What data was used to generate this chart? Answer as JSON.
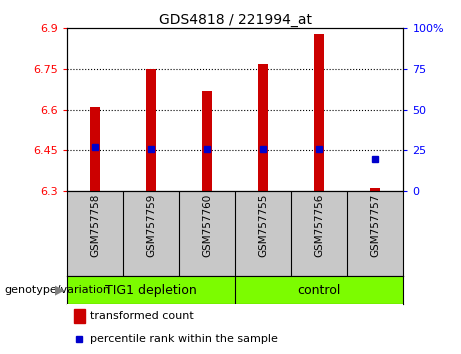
{
  "title": "GDS4818 / 221994_at",
  "samples": [
    "GSM757758",
    "GSM757759",
    "GSM757760",
    "GSM757755",
    "GSM757756",
    "GSM757757"
  ],
  "group_labels": [
    "TIG1 depletion",
    "control"
  ],
  "transformed_counts": [
    6.61,
    6.75,
    6.67,
    6.77,
    6.88,
    6.31
  ],
  "percentile_ranks": [
    27,
    26,
    26,
    26,
    26,
    20
  ],
  "ylim_left": [
    6.3,
    6.9
  ],
  "ylim_right": [
    0,
    100
  ],
  "yticks_left": [
    6.3,
    6.45,
    6.6,
    6.75,
    6.9
  ],
  "yticks_right": [
    0,
    25,
    50,
    75,
    100
  ],
  "grid_yticks": [
    6.45,
    6.6,
    6.75
  ],
  "bar_color": "#CC0000",
  "dot_color": "#0000CC",
  "bar_width": 0.18,
  "background_label": "#C8C8C8",
  "background_group": "#7CFC00",
  "label_fontsize": 7.5,
  "title_fontsize": 10,
  "tick_fontsize": 8,
  "group_fontsize": 9,
  "legend_fontsize": 8,
  "genotype_fontsize": 8
}
